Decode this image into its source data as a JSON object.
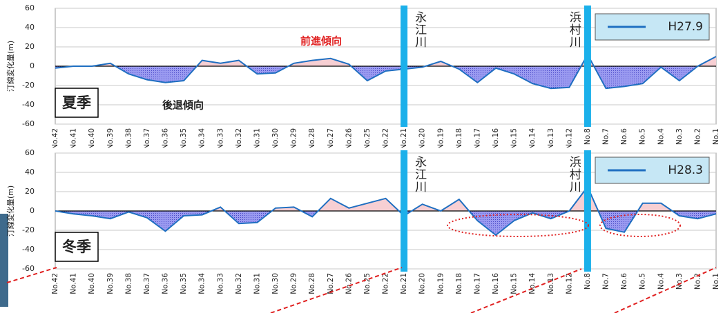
{
  "chart_data": [
    {
      "type": "line",
      "y_label": "汀線変化量(m)",
      "categories": [
        "No.42",
        "No.41",
        "No.40",
        "No.39",
        "No.38",
        "No.37",
        "No.36",
        "No.35",
        "No.34",
        "No.33",
        "No.32",
        "No.31",
        "No.30",
        "No.29",
        "No.28",
        "No.27",
        "No.26",
        "No.25",
        "No.22",
        "No.21",
        "No.20",
        "No.19",
        "No.18",
        "No.17",
        "No.16",
        "No.15",
        "No.14",
        "No.13",
        "No.12",
        "No.8",
        "No.7",
        "No.6",
        "No.5",
        "No.4",
        "No.3",
        "No.2",
        "No.1"
      ],
      "series": [
        {
          "name": "H27.9",
          "color": "#1f6fc1",
          "values": [
            -2,
            0,
            0,
            3,
            -8,
            -14,
            -17,
            -15,
            6,
            3,
            6,
            -8,
            -7,
            3,
            6,
            8,
            2,
            -15,
            -5,
            -3,
            -1,
            5,
            -3,
            -17,
            -2,
            -8,
            -18,
            -23,
            -22,
            12,
            -23,
            -21,
            -18,
            -1,
            -15,
            0,
            10
          ]
        }
      ],
      "ylim": [
        -60,
        60
      ],
      "yticks": [
        -60,
        -40,
        -20,
        0,
        20,
        40,
        60
      ],
      "grid": true,
      "positive_color": "#f7cfd3",
      "negative_color": "#7f7fe6",
      "season": "夏季",
      "annotations": [
        "前進傾向",
        "後退傾向"
      ],
      "rivers": [
        {
          "at": "No.21",
          "label": "永江川"
        },
        {
          "at": "No.8",
          "label": "浜村川"
        }
      ],
      "river_color": "#1bb0ea"
    },
    {
      "type": "line",
      "y_label": "汀線変化量(m)",
      "categories": [
        "No.42",
        "No.41",
        "No.40",
        "No.39",
        "No.38",
        "No.37",
        "No.36",
        "No.35",
        "No.34",
        "No.33",
        "No.32",
        "No.31",
        "No.30",
        "No.29",
        "No.28",
        "No.27",
        "No.26",
        "No.25",
        "No.22",
        "No.21",
        "No.20",
        "No.19",
        "No.18",
        "No.17",
        "No.16",
        "No.15",
        "No.14",
        "No.13",
        "No.12",
        "No.8",
        "No.7",
        "No.6",
        "No.5",
        "No.4",
        "No.3",
        "No.2",
        "No.1"
      ],
      "series": [
        {
          "name": "H28.3",
          "color": "#1f6fc1",
          "values": [
            0,
            -3,
            -5,
            -8,
            -1,
            -7,
            -21,
            -5,
            -4,
            4,
            -13,
            -12,
            3,
            4,
            -6,
            13,
            3,
            8,
            13,
            -5,
            7,
            0,
            12,
            -10,
            -25,
            -10,
            -2,
            -8,
            0,
            25,
            -18,
            -22,
            8,
            8,
            -5,
            -8,
            -3
          ]
        }
      ],
      "ylim": [
        -60,
        60
      ],
      "yticks": [
        -60,
        -40,
        -20,
        0,
        20,
        40,
        60
      ],
      "grid": true,
      "positive_color": "#f7cfd3",
      "negative_color": "#7f7fe6",
      "season": "冬季",
      "rivers": [
        {
          "at": "No.21",
          "label": "永江川"
        },
        {
          "at": "No.8",
          "label": "浜村川"
        }
      ],
      "river_color": "#1bb0ea"
    }
  ]
}
